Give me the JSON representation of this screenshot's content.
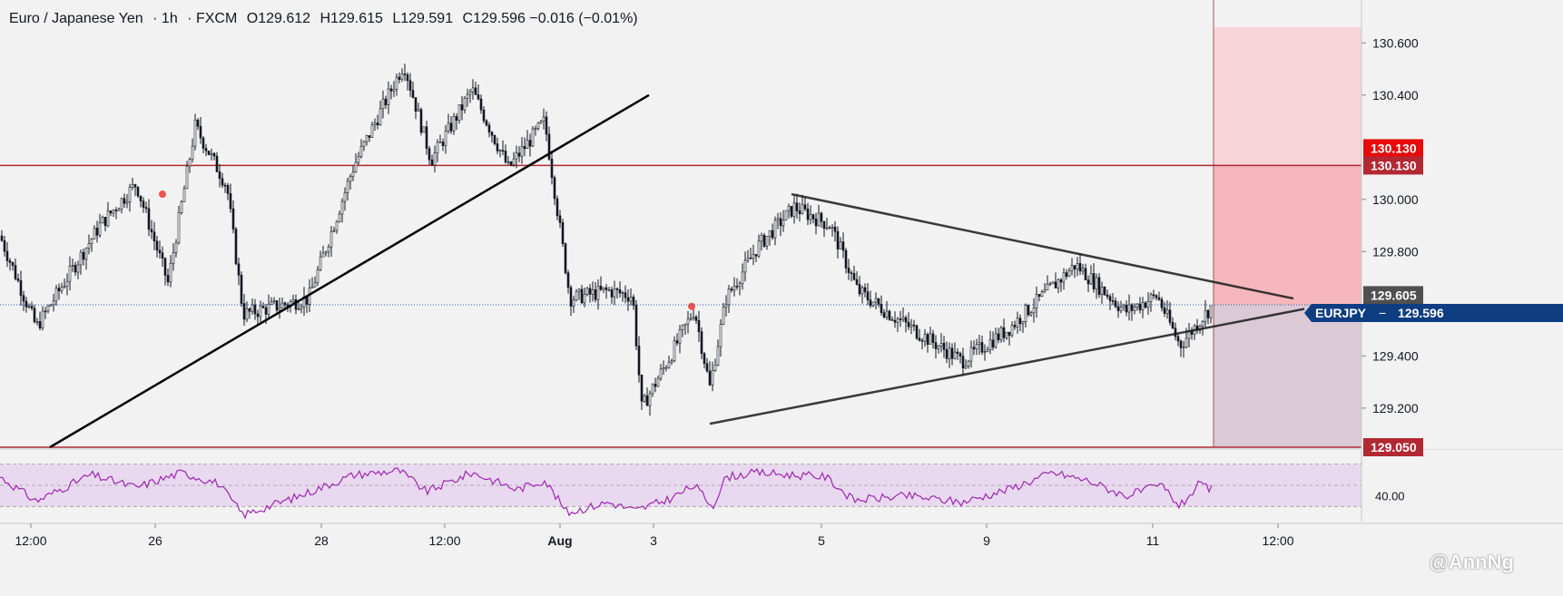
{
  "header": {
    "symbol": "Euro / Japanese Yen",
    "interval": "1h",
    "source": "FXCM",
    "open_label": "O",
    "open": "129.612",
    "high_label": "H",
    "high": "129.615",
    "low_label": "L",
    "low": "129.591",
    "close_label": "C",
    "close": "129.596",
    "change": "−0.016",
    "change_pct": "(−0.01%)"
  },
  "watermark": "@AnnNg",
  "colors": {
    "background": "#f2f2f2",
    "candle": "#131722",
    "resistance_line": "#b22833",
    "stop_zone": "#f4b3b8",
    "stop_zone_light": "#f7d3d7",
    "target_zone": "#d9c6d3",
    "rsi_band": "#e9d9f0",
    "rsi_line": "#9c27b0",
    "price_tag": "#0f3d82",
    "level_tag": "#e60a0a",
    "last_tag": "#505050",
    "marker": "#ef5350"
  },
  "chart_data": {
    "type": "candlestick",
    "symbol": "EURJPY",
    "timeframe": "1h",
    "ylim": [
      129.05,
      130.66
    ],
    "y_ticks": [
      "130.600",
      "130.400",
      "130.000",
      "129.800",
      "129.400",
      "129.200"
    ],
    "x_ticks": [
      "12:00",
      "26",
      "28",
      "12:00",
      "Aug",
      "3",
      "5",
      "9",
      "11",
      "12:00"
    ],
    "horizontal_levels": [
      {
        "price": 130.13,
        "label": "130.130"
      },
      {
        "price": 130.13,
        "label": "130.130"
      },
      {
        "price": 129.05,
        "label": "129.050"
      }
    ],
    "last_price": {
      "symbol": "EURJPY",
      "price": 129.596,
      "label": "129.596"
    },
    "upper_tag": {
      "price": 129.605,
      "label": "129.605"
    },
    "anchors": [
      {
        "x": 0,
        "y": 129.86
      },
      {
        "x": 40,
        "y": 129.51
      },
      {
        "x": 110,
        "y": 129.9
      },
      {
        "x": 150,
        "y": 130.06
      },
      {
        "x": 185,
        "y": 129.68
      },
      {
        "x": 215,
        "y": 130.28
      },
      {
        "x": 250,
        "y": 130.05
      },
      {
        "x": 268,
        "y": 129.56
      },
      {
        "x": 340,
        "y": 129.62
      },
      {
        "x": 390,
        "y": 130.13
      },
      {
        "x": 445,
        "y": 130.52
      },
      {
        "x": 475,
        "y": 130.15
      },
      {
        "x": 520,
        "y": 130.42
      },
      {
        "x": 560,
        "y": 130.12
      },
      {
        "x": 600,
        "y": 130.3
      },
      {
        "x": 628,
        "y": 129.62
      },
      {
        "x": 670,
        "y": 129.65
      },
      {
        "x": 697,
        "y": 129.63
      },
      {
        "x": 707,
        "y": 129.2
      },
      {
        "x": 740,
        "y": 129.41
      },
      {
        "x": 765,
        "y": 129.58
      },
      {
        "x": 782,
        "y": 129.28
      },
      {
        "x": 800,
        "y": 129.62
      },
      {
        "x": 835,
        "y": 129.82
      },
      {
        "x": 875,
        "y": 129.97
      },
      {
        "x": 915,
        "y": 129.9
      },
      {
        "x": 945,
        "y": 129.65
      },
      {
        "x": 985,
        "y": 129.55
      },
      {
        "x": 1060,
        "y": 129.38
      },
      {
        "x": 1110,
        "y": 129.5
      },
      {
        "x": 1185,
        "y": 129.75
      },
      {
        "x": 1240,
        "y": 129.57
      },
      {
        "x": 1275,
        "y": 129.63
      },
      {
        "x": 1300,
        "y": 129.44
      },
      {
        "x": 1336,
        "y": 129.596
      }
    ],
    "markers": [
      {
        "x": 179,
        "y": 130.02
      },
      {
        "x": 762,
        "y": 129.59
      }
    ],
    "trendlines": [
      {
        "from": [
          55,
          129.05
        ],
        "to": [
          715,
          130.4
        ]
      },
      {
        "from": [
          872,
          130.02
        ],
        "to": [
          1425,
          129.62
        ]
      },
      {
        "from": [
          782,
          129.14
        ],
        "to": [
          1437,
          129.58
        ]
      }
    ],
    "zones": [
      {
        "kind": "stop",
        "from_price": 130.13,
        "to_price": 129.596,
        "x_from": 1337,
        "x_to": 1500
      },
      {
        "kind": "stop-light",
        "from_price": 130.66,
        "to_price": 130.13,
        "x_from": 1337,
        "x_to": 1500
      },
      {
        "kind": "target",
        "from_price": 129.596,
        "to_price": 129.05,
        "x_from": 1337,
        "x_to": 1500
      }
    ],
    "rsi": {
      "ylim": [
        20,
        80
      ],
      "y_ticks": [
        "40.00"
      ],
      "anchors": [
        {
          "x": 0,
          "y": 58
        },
        {
          "x": 40,
          "y": 35
        },
        {
          "x": 100,
          "y": 60
        },
        {
          "x": 150,
          "y": 48
        },
        {
          "x": 200,
          "y": 62
        },
        {
          "x": 240,
          "y": 52
        },
        {
          "x": 268,
          "y": 22
        },
        {
          "x": 330,
          "y": 40
        },
        {
          "x": 390,
          "y": 60
        },
        {
          "x": 440,
          "y": 64
        },
        {
          "x": 470,
          "y": 44
        },
        {
          "x": 520,
          "y": 62
        },
        {
          "x": 570,
          "y": 46
        },
        {
          "x": 600,
          "y": 55
        },
        {
          "x": 625,
          "y": 24
        },
        {
          "x": 670,
          "y": 34
        },
        {
          "x": 700,
          "y": 26
        },
        {
          "x": 740,
          "y": 38
        },
        {
          "x": 765,
          "y": 50
        },
        {
          "x": 785,
          "y": 30
        },
        {
          "x": 800,
          "y": 58
        },
        {
          "x": 835,
          "y": 62
        },
        {
          "x": 870,
          "y": 60
        },
        {
          "x": 910,
          "y": 58
        },
        {
          "x": 940,
          "y": 36
        },
        {
          "x": 1000,
          "y": 40
        },
        {
          "x": 1060,
          "y": 34
        },
        {
          "x": 1110,
          "y": 46
        },
        {
          "x": 1160,
          "y": 62
        },
        {
          "x": 1200,
          "y": 54
        },
        {
          "x": 1240,
          "y": 40
        },
        {
          "x": 1280,
          "y": 50
        },
        {
          "x": 1300,
          "y": 30
        },
        {
          "x": 1320,
          "y": 50
        },
        {
          "x": 1336,
          "y": 46
        }
      ]
    }
  }
}
